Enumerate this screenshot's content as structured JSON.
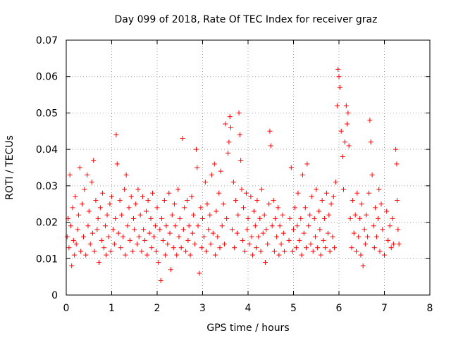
{
  "chart_data": {
    "type": "scatter",
    "title": "Day 099 of 2018, Rate Of TEC Index for receiver graz",
    "xlabel": "GPS time / hours",
    "ylabel": "ROTI / TECUs",
    "xlim": [
      0,
      8
    ],
    "ylim": [
      0,
      0.07
    ],
    "xticks": [
      0,
      1,
      2,
      3,
      4,
      5,
      6,
      7,
      8
    ],
    "yticks": [
      0,
      0.01,
      0.02,
      0.03,
      0.04,
      0.05,
      0.06,
      0.07
    ],
    "xtick_labels": [
      "0",
      "1",
      "2",
      "3",
      "4",
      "5",
      "6",
      "7",
      "8"
    ],
    "ytick_labels": [
      "0",
      "0.01",
      "0.02",
      "0.03",
      "0.04",
      "0.05",
      "0.06",
      "0.07"
    ],
    "grid": true,
    "marker": "+",
    "color": "#ff0000",
    "series": [
      {
        "name": "ROTI",
        "points": [
          [
            0.02,
            0.016
          ],
          [
            0.04,
            0.021
          ],
          [
            0.06,
            0.013
          ],
          [
            0.08,
            0.033
          ],
          [
            0.1,
            0.019
          ],
          [
            0.12,
            0.008
          ],
          [
            0.14,
            0.024
          ],
          [
            0.16,
            0.015
          ],
          [
            0.18,
            0.011
          ],
          [
            0.2,
            0.027
          ],
          [
            0.22,
            0.014
          ],
          [
            0.25,
            0.018
          ],
          [
            0.27,
            0.022
          ],
          [
            0.3,
            0.035
          ],
          [
            0.32,
            0.012
          ],
          [
            0.35,
            0.025
          ],
          [
            0.38,
            0.016
          ],
          [
            0.4,
            0.029
          ],
          [
            0.43,
            0.011
          ],
          [
            0.46,
            0.033
          ],
          [
            0.48,
            0.019
          ],
          [
            0.5,
            0.023
          ],
          [
            0.53,
            0.014
          ],
          [
            0.56,
            0.031
          ],
          [
            0.58,
            0.017
          ],
          [
            0.6,
            0.037
          ],
          [
            0.62,
            0.012
          ],
          [
            0.65,
            0.026
          ],
          [
            0.68,
            0.018
          ],
          [
            0.7,
            0.021
          ],
          [
            0.72,
            0.009
          ],
          [
            0.75,
            0.024
          ],
          [
            0.78,
            0.015
          ],
          [
            0.8,
            0.028
          ],
          [
            0.83,
            0.013
          ],
          [
            0.86,
            0.019
          ],
          [
            0.88,
            0.011
          ],
          [
            0.9,
            0.022
          ],
          [
            0.93,
            0.016
          ],
          [
            0.96,
            0.025
          ],
          [
            0.98,
            0.012
          ],
          [
            1.0,
            0.027
          ],
          [
            1.03,
            0.018
          ],
          [
            1.06,
            0.014
          ],
          [
            1.08,
            0.021
          ],
          [
            1.1,
            0.044
          ],
          [
            1.12,
            0.036
          ],
          [
            1.15,
            0.017
          ],
          [
            1.18,
            0.026
          ],
          [
            1.2,
            0.013
          ],
          [
            1.22,
            0.022
          ],
          [
            1.25,
            0.016
          ],
          [
            1.28,
            0.029
          ],
          [
            1.3,
            0.011
          ],
          [
            1.32,
            0.033
          ],
          [
            1.35,
            0.019
          ],
          [
            1.38,
            0.024
          ],
          [
            1.4,
            0.015
          ],
          [
            1.43,
            0.027
          ],
          [
            1.46,
            0.012
          ],
          [
            1.48,
            0.021
          ],
          [
            1.5,
            0.018
          ],
          [
            1.53,
            0.025
          ],
          [
            1.56,
            0.014
          ],
          [
            1.58,
            0.029
          ],
          [
            1.6,
            0.016
          ],
          [
            1.63,
            0.022
          ],
          [
            1.66,
            0.012
          ],
          [
            1.68,
            0.027
          ],
          [
            1.7,
            0.018
          ],
          [
            1.73,
            0.015
          ],
          [
            1.76,
            0.023
          ],
          [
            1.78,
            0.011
          ],
          [
            1.8,
            0.026
          ],
          [
            1.83,
            0.017
          ],
          [
            1.86,
            0.021
          ],
          [
            1.88,
            0.013
          ],
          [
            1.9,
            0.028
          ],
          [
            1.93,
            0.016
          ],
          [
            1.96,
            0.019
          ],
          [
            1.98,
            0.012
          ],
          [
            2.0,
            0.024
          ],
          [
            2.03,
            0.009
          ],
          [
            2.06,
            0.018
          ],
          [
            2.08,
            0.004
          ],
          [
            2.1,
            0.021
          ],
          [
            2.13,
            0.015
          ],
          [
            2.16,
            0.026
          ],
          [
            2.18,
            0.011
          ],
          [
            2.2,
            0.019
          ],
          [
            2.23,
            0.014
          ],
          [
            2.26,
            0.028
          ],
          [
            2.28,
            0.017
          ],
          [
            2.3,
            0.007
          ],
          [
            2.33,
            0.022
          ],
          [
            2.36,
            0.013
          ],
          [
            2.38,
            0.025
          ],
          [
            2.4,
            0.019
          ],
          [
            2.43,
            0.011
          ],
          [
            2.46,
            0.029
          ],
          [
            2.48,
            0.016
          ],
          [
            2.5,
            0.021
          ],
          [
            2.53,
            0.013
          ],
          [
            2.56,
            0.043
          ],
          [
            2.58,
            0.018
          ],
          [
            2.6,
            0.024
          ],
          [
            2.63,
            0.012
          ],
          [
            2.66,
            0.026
          ],
          [
            2.68,
            0.015
          ],
          [
            2.7,
            0.019
          ],
          [
            2.73,
            0.011
          ],
          [
            2.76,
            0.027
          ],
          [
            2.78,
            0.017
          ],
          [
            2.8,
            0.022
          ],
          [
            2.83,
            0.014
          ],
          [
            2.86,
            0.04
          ],
          [
            2.88,
            0.035
          ],
          [
            2.9,
            0.019
          ],
          [
            2.93,
            0.006
          ],
          [
            2.96,
            0.024
          ],
          [
            2.98,
            0.013
          ],
          [
            3.0,
            0.021
          ],
          [
            3.03,
            0.016
          ],
          [
            3.06,
            0.031
          ],
          [
            3.08,
            0.012
          ],
          [
            3.1,
            0.025
          ],
          [
            3.13,
            0.018
          ],
          [
            3.16,
            0.022
          ],
          [
            3.18,
            0.014
          ],
          [
            3.2,
            0.033
          ],
          [
            3.23,
            0.017
          ],
          [
            3.26,
            0.036
          ],
          [
            3.28,
            0.011
          ],
          [
            3.3,
            0.023
          ],
          [
            3.33,
            0.016
          ],
          [
            3.36,
            0.028
          ],
          [
            3.38,
            0.013
          ],
          [
            3.4,
            0.034
          ],
          [
            3.43,
            0.019
          ],
          [
            3.46,
            0.025
          ],
          [
            3.48,
            0.014
          ],
          [
            3.5,
            0.047
          ],
          [
            3.53,
            0.021
          ],
          [
            3.56,
            0.039
          ],
          [
            3.58,
            0.042
          ],
          [
            3.6,
            0.049
          ],
          [
            3.62,
            0.046
          ],
          [
            3.65,
            0.018
          ],
          [
            3.68,
            0.031
          ],
          [
            3.7,
            0.013
          ],
          [
            3.73,
            0.026
          ],
          [
            3.76,
            0.017
          ],
          [
            3.78,
            0.022
          ],
          [
            3.8,
            0.05
          ],
          [
            3.82,
            0.044
          ],
          [
            3.84,
            0.037
          ],
          [
            3.86,
            0.029
          ],
          [
            3.88,
            0.015
          ],
          [
            3.9,
            0.024
          ],
          [
            3.93,
            0.012
          ],
          [
            3.96,
            0.028
          ],
          [
            3.98,
            0.018
          ],
          [
            4.0,
            0.021
          ],
          [
            4.03,
            0.014
          ],
          [
            4.06,
            0.027
          ],
          [
            4.08,
            0.016
          ],
          [
            4.1,
            0.011
          ],
          [
            4.13,
            0.023
          ],
          [
            4.16,
            0.019
          ],
          [
            4.18,
            0.013
          ],
          [
            4.2,
            0.026
          ],
          [
            4.23,
            0.016
          ],
          [
            4.26,
            0.021
          ],
          [
            4.28,
            0.012
          ],
          [
            4.3,
            0.029
          ],
          [
            4.33,
            0.017
          ],
          [
            4.36,
            0.022
          ],
          [
            4.38,
            0.009
          ],
          [
            4.4,
            0.018
          ],
          [
            4.43,
            0.014
          ],
          [
            4.46,
            0.025
          ],
          [
            4.48,
            0.045
          ],
          [
            4.5,
            0.041
          ],
          [
            4.53,
            0.019
          ],
          [
            4.56,
            0.026
          ],
          [
            4.58,
            0.012
          ],
          [
            4.6,
            0.021
          ],
          [
            4.63,
            0.016
          ],
          [
            4.66,
            0.024
          ],
          [
            4.68,
            0.011
          ],
          [
            4.7,
            0.019
          ],
          [
            4.73,
            0.014
          ],
          [
            4.76,
            0.022
          ],
          [
            4.78,
            0.017
          ],
          [
            4.8,
            0.012
          ],
          [
            4.9,
            0.015
          ],
          [
            4.92,
            0.021
          ],
          [
            4.95,
            0.035
          ],
          [
            4.98,
            0.012
          ],
          [
            5.0,
            0.018
          ],
          [
            5.03,
            0.024
          ],
          [
            5.06,
            0.013
          ],
          [
            5.08,
            0.019
          ],
          [
            5.1,
            0.028
          ],
          [
            5.13,
            0.015
          ],
          [
            5.16,
            0.021
          ],
          [
            5.18,
            0.011
          ],
          [
            5.2,
            0.033
          ],
          [
            5.23,
            0.017
          ],
          [
            5.26,
            0.024
          ],
          [
            5.28,
            0.013
          ],
          [
            5.3,
            0.036
          ],
          [
            5.33,
            0.019
          ],
          [
            5.36,
            0.022
          ],
          [
            5.38,
            0.014
          ],
          [
            5.4,
            0.027
          ],
          [
            5.43,
            0.012
          ],
          [
            5.46,
            0.021
          ],
          [
            5.48,
            0.016
          ],
          [
            5.5,
            0.029
          ],
          [
            5.53,
            0.013
          ],
          [
            5.56,
            0.023
          ],
          [
            5.58,
            0.018
          ],
          [
            5.6,
            0.011
          ],
          [
            5.63,
            0.026
          ],
          [
            5.66,
            0.015
          ],
          [
            5.68,
            0.021
          ],
          [
            5.7,
            0.013
          ],
          [
            5.73,
            0.028
          ],
          [
            5.76,
            0.017
          ],
          [
            5.78,
            0.022
          ],
          [
            5.8,
            0.012
          ],
          [
            5.83,
            0.025
          ],
          [
            5.86,
            0.016
          ],
          [
            5.88,
            0.027
          ],
          [
            5.9,
            0.013
          ],
          [
            5.93,
            0.031
          ],
          [
            5.96,
            0.052
          ],
          [
            5.98,
            0.062
          ],
          [
            6.0,
            0.06
          ],
          [
            6.02,
            0.057
          ],
          [
            6.05,
            0.045
          ],
          [
            6.08,
            0.038
          ],
          [
            6.1,
            0.029
          ],
          [
            6.13,
            0.042
          ],
          [
            6.16,
            0.052
          ],
          [
            6.18,
            0.047
          ],
          [
            6.2,
            0.05
          ],
          [
            6.22,
            0.041
          ],
          [
            6.25,
            0.021
          ],
          [
            6.28,
            0.013
          ],
          [
            6.3,
            0.026
          ],
          [
            6.33,
            0.017
          ],
          [
            6.36,
            0.022
          ],
          [
            6.38,
            0.012
          ],
          [
            6.4,
            0.028
          ],
          [
            6.43,
            0.016
          ],
          [
            6.46,
            0.021
          ],
          [
            6.48,
            0.011
          ],
          [
            6.5,
            0.025
          ],
          [
            6.53,
            0.008
          ],
          [
            6.56,
            0.018
          ],
          [
            6.58,
            0.014
          ],
          [
            6.6,
            0.022
          ],
          [
            6.63,
            0.016
          ],
          [
            6.66,
            0.028
          ],
          [
            6.68,
            0.048
          ],
          [
            6.7,
            0.042
          ],
          [
            6.73,
            0.033
          ],
          [
            6.76,
            0.019
          ],
          [
            6.78,
            0.013
          ],
          [
            6.8,
            0.024
          ],
          [
            6.83,
            0.016
          ],
          [
            6.86,
            0.021
          ],
          [
            6.88,
            0.029
          ],
          [
            6.9,
            0.012
          ],
          [
            6.93,
            0.025
          ],
          [
            6.96,
            0.018
          ],
          [
            7.0,
            0.011
          ],
          [
            7.05,
            0.023
          ],
          [
            7.08,
            0.015
          ],
          [
            7.12,
            0.019
          ],
          [
            7.15,
            0.013
          ],
          [
            7.18,
            0.021
          ],
          [
            7.2,
            0.014
          ],
          [
            7.25,
            0.04
          ],
          [
            7.27,
            0.036
          ],
          [
            7.28,
            0.026
          ],
          [
            7.3,
            0.018
          ],
          [
            7.32,
            0.014
          ]
        ]
      }
    ]
  }
}
